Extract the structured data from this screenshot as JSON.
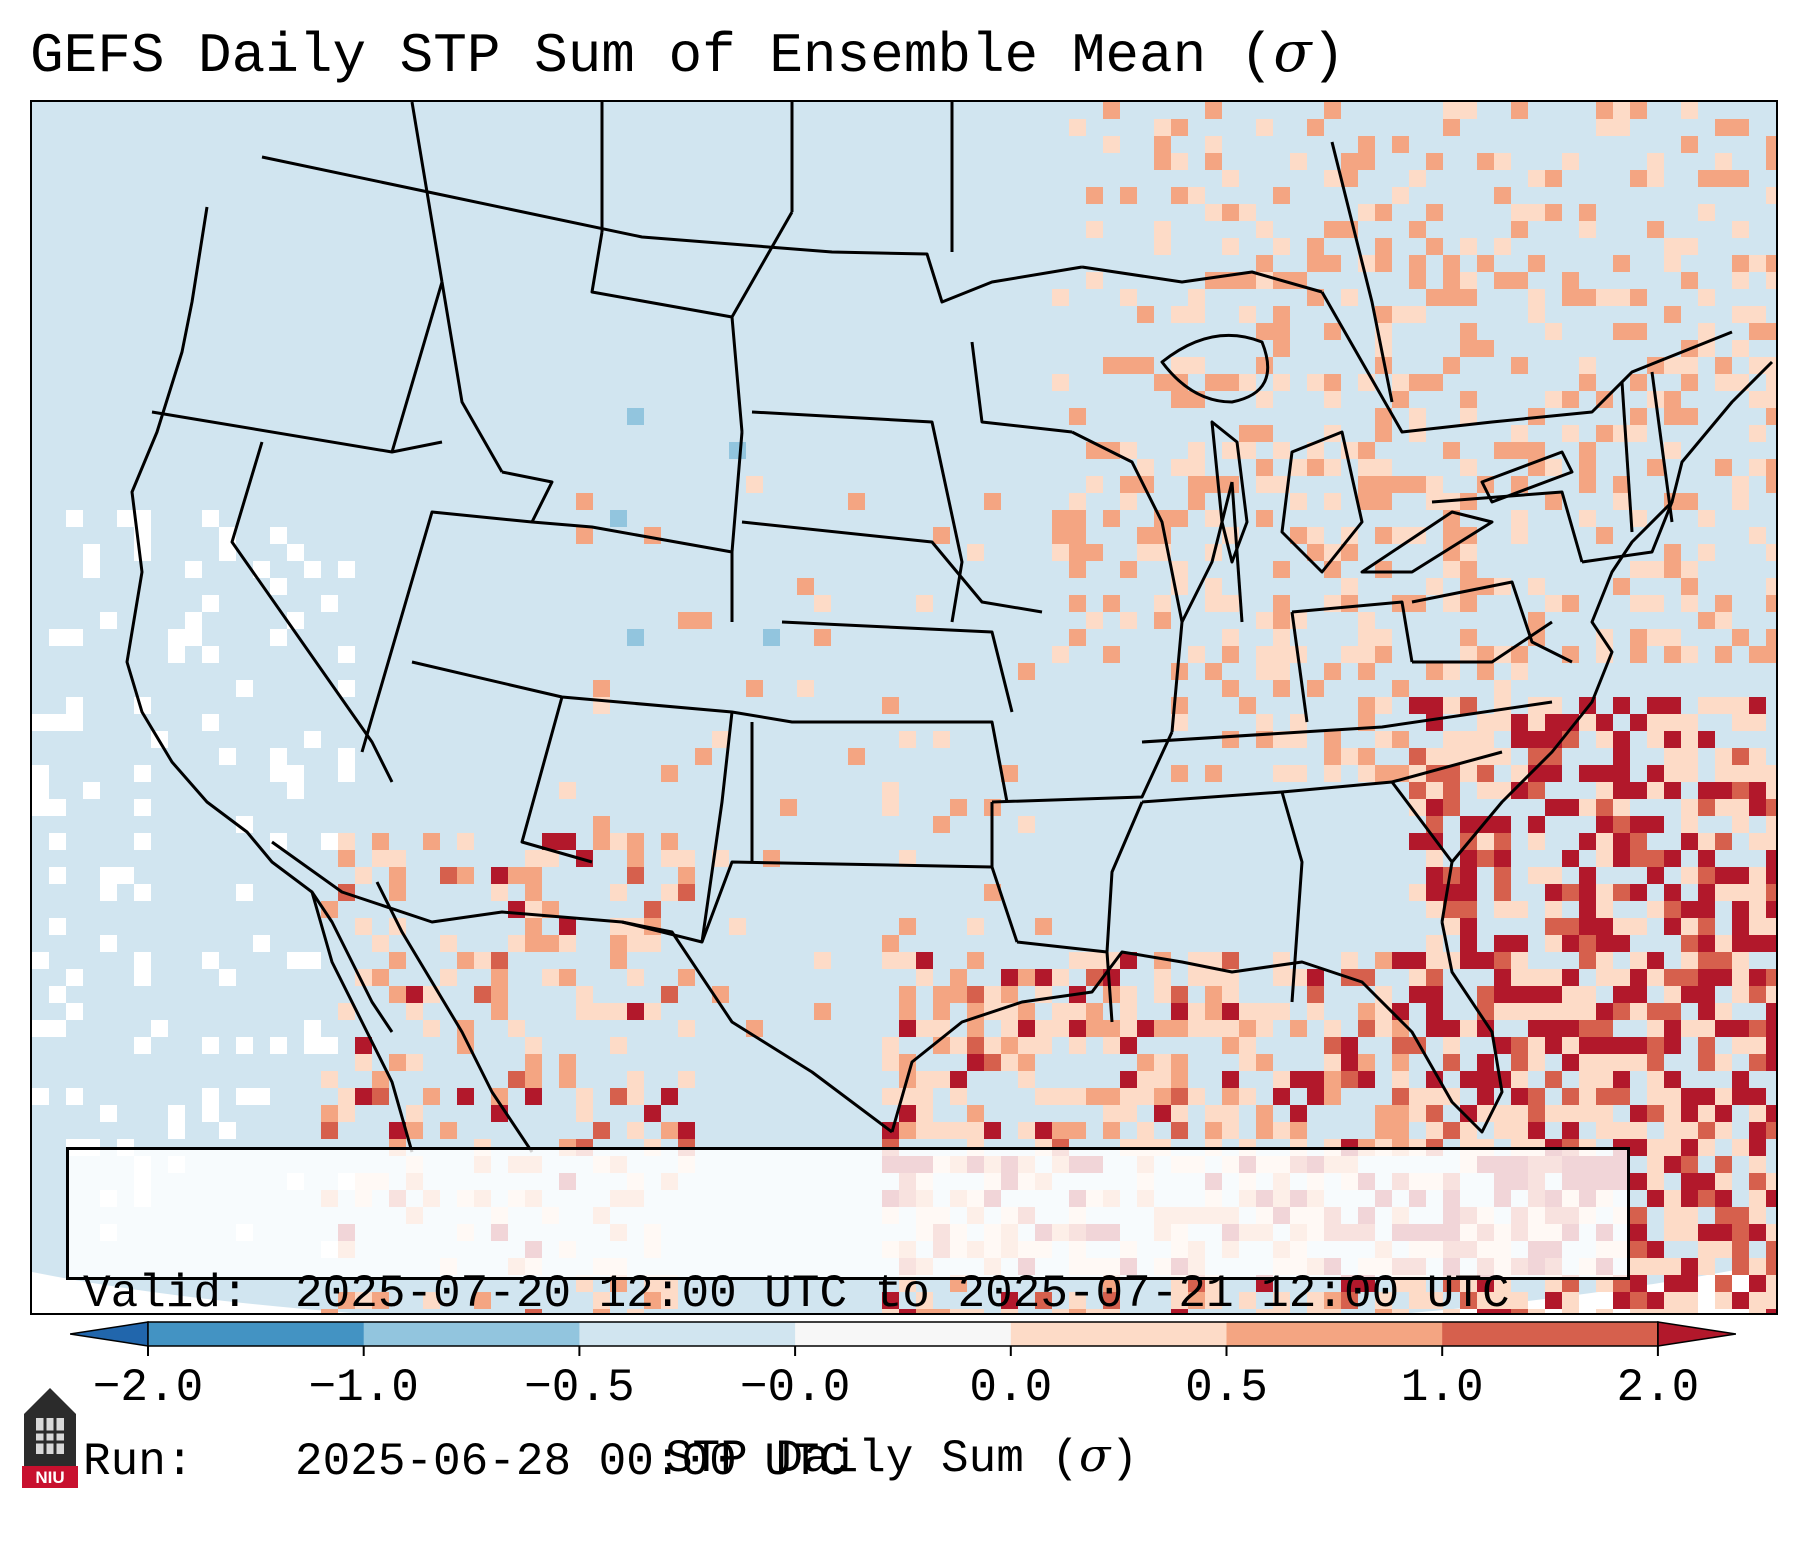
{
  "title": {
    "main": "GEFS Daily STP Sum of Ensemble Mean (",
    "symbol": "σ",
    "close": ")"
  },
  "info": {
    "valid_label": "Valid:",
    "valid_value": "2025-07-20 12:00 UTC to 2025-07-21 12:00 UTC",
    "run_label": "Run:",
    "run_value": "2025-06-28 00:00 UTC"
  },
  "colorbar": {
    "label_main": "STP Daily Sum (",
    "label_symbol": "σ",
    "label_close": ")",
    "ticks": [
      "−2.0",
      "−1.0",
      "−0.5",
      "−0.0",
      "0.0",
      "0.5",
      "1.0",
      "2.0"
    ],
    "bins": [
      {
        "from": -2.0,
        "to": -1.0,
        "color": "#4393c3"
      },
      {
        "from": -1.0,
        "to": -0.5,
        "color": "#92c5de"
      },
      {
        "from": -0.5,
        "to": -0.0,
        "color": "#d1e5f0"
      },
      {
        "from": -0.0,
        "to": 0.0,
        "color": "#f7f7f7"
      },
      {
        "from": 0.0,
        "to": 0.5,
        "color": "#fddbc7"
      },
      {
        "from": 0.5,
        "to": 1.0,
        "color": "#f4a582"
      },
      {
        "from": 1.0,
        "to": 2.0,
        "color": "#d6604d"
      }
    ],
    "under_color": "#2166ac",
    "over_color": "#b2182b"
  },
  "map": {
    "background_color": "#d1e5f0",
    "ocean_edge_color": "#ffffff"
  },
  "logo": {
    "text": "NIU"
  }
}
